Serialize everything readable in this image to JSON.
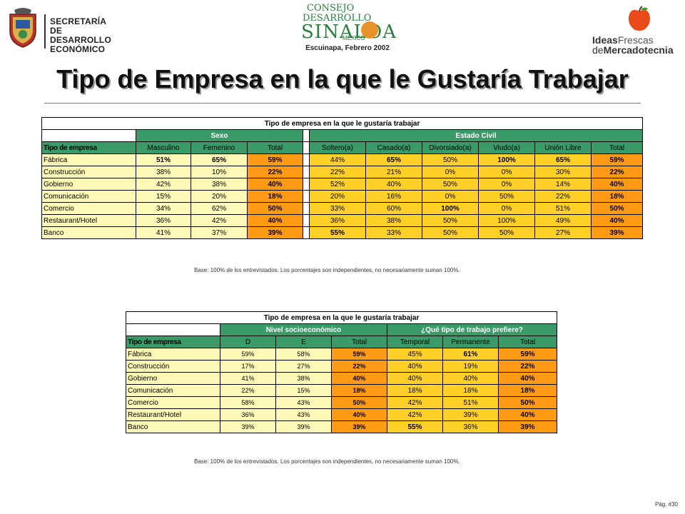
{
  "header": {
    "left_logo_text": [
      "SECRETARÍA",
      "DE DESARROLLO",
      "ECONÓMICO"
    ],
    "center_logo": {
      "line1": "CONSEJO",
      "line2": "DESARROLLO",
      "name": "SINALOA",
      "sub": "MEXICO"
    },
    "subtitle": "Escuinapa, Febrero 2002",
    "right_logo": {
      "part1": "Ideas",
      "part2": "Frescas",
      "part3": "de",
      "part4": "Mercadotecnia"
    }
  },
  "page_title": "Tipo de Empresa en la que le Gustaría Trabajar",
  "table1": {
    "title": "Tipo de empresa en la que le gustaría trabajar",
    "group_sexo": "Sexo",
    "group_civil": "Estado Civil",
    "first_header": "Tipo de empresa",
    "columns": [
      "Masculino",
      "Femenino",
      "Total",
      "Soltero(a)",
      "Casado(a)",
      "Divorsiado(a)",
      "Viudo(a)",
      "Unión Libre",
      "Total"
    ],
    "rows": [
      {
        "label": "Fábrica",
        "values": [
          "51%",
          "65%",
          "59%",
          "44%",
          "65%",
          "50%",
          "100%",
          "65%",
          "59%"
        ]
      },
      {
        "label": "Construcción",
        "values": [
          "38%",
          "10%",
          "22%",
          "22%",
          "21%",
          "0%",
          "0%",
          "30%",
          "22%"
        ]
      },
      {
        "label": "Gobierno",
        "values": [
          "42%",
          "38%",
          "40%",
          "52%",
          "40%",
          "50%",
          "0%",
          "14%",
          "40%"
        ]
      },
      {
        "label": "Comunicación",
        "values": [
          "15%",
          "20%",
          "18%",
          "20%",
          "16%",
          "0%",
          "50%",
          "22%",
          "18%"
        ]
      },
      {
        "label": "Comercio",
        "values": [
          "34%",
          "62%",
          "50%",
          "33%",
          "60%",
          "100%",
          "0%",
          "51%",
          "50%"
        ]
      },
      {
        "label": "Restaurant/Hotel",
        "values": [
          "36%",
          "42%",
          "40%",
          "36%",
          "38%",
          "50%",
          "100%",
          "49%",
          "40%"
        ]
      },
      {
        "label": "Banco",
        "values": [
          "41%",
          "37%",
          "39%",
          "55%",
          "33%",
          "50%",
          "50%",
          "27%",
          "39%"
        ]
      }
    ],
    "note": "Base:   100% de los entrevistados. Los porcentajes son independientes, no necesariamente suman 100%."
  },
  "table2": {
    "title": "Tipo de empresa en la que le gustaría trabajar",
    "group_nivel": "Nivel socioeconómico",
    "group_trabajo": "¿Qué tipo de trabajo prefiere?",
    "first_header": "Tipo de empresa",
    "columns": [
      "D",
      "E",
      "Total",
      "Temporal",
      "Permanente",
      "Total"
    ],
    "rows": [
      {
        "label": "Fábrica",
        "values": [
          "59%",
          "58%",
          "59%",
          "45%",
          "61%",
          "59%"
        ]
      },
      {
        "label": "Construcción",
        "values": [
          "17%",
          "27%",
          "22%",
          "40%",
          "19%",
          "22%"
        ]
      },
      {
        "label": "Gobierno",
        "values": [
          "41%",
          "38%",
          "40%",
          "40%",
          "40%",
          "40%"
        ]
      },
      {
        "label": "Comunicación",
        "values": [
          "22%",
          "15%",
          "18%",
          "18%",
          "18%",
          "18%"
        ]
      },
      {
        "label": "Comercio",
        "values": [
          "58%",
          "43%",
          "50%",
          "42%",
          "51%",
          "50%"
        ]
      },
      {
        "label": "Restaurant/Hotel",
        "values": [
          "36%",
          "43%",
          "40%",
          "42%",
          "39%",
          "40%"
        ]
      },
      {
        "label": "Banco",
        "values": [
          "39%",
          "39%",
          "39%",
          "55%",
          "36%",
          "39%"
        ]
      }
    ],
    "note": "Base:   100% de los entrevistados. Los porcentajes son independientes, no necesariamente suman 100%."
  },
  "footer": {
    "page": "Pág. #30"
  }
}
